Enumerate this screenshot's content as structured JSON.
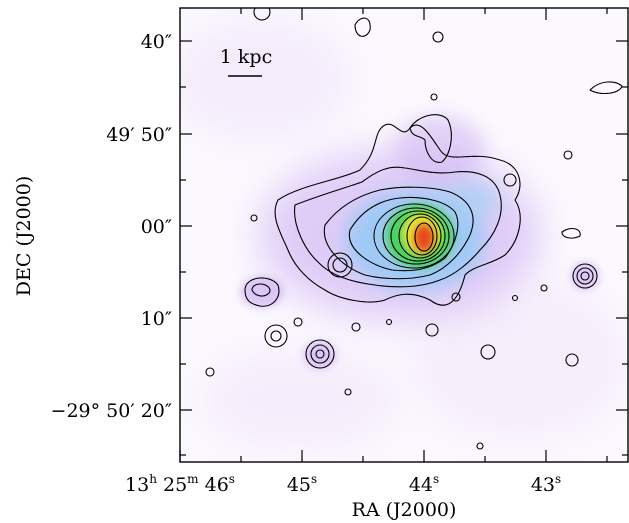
{
  "figure": {
    "scalebar_label": "1 kpc",
    "ylabel": "DEC (J2000)",
    "xlabel": "RA (J2000)",
    "dec_ticks": [
      {
        "label": "40″"
      },
      {
        "label": "49′ 50″"
      },
      {
        "label": "00″"
      },
      {
        "label": "10″"
      },
      {
        "label": "−29° 50′ 20″"
      }
    ],
    "ra_ticks": [
      {
        "h": "13",
        "m": "25",
        "s": "46"
      },
      {
        "s": "45"
      },
      {
        "s": "44"
      },
      {
        "s": "43"
      }
    ],
    "ra_units": {
      "h": "h",
      "m": "m",
      "s": "s"
    },
    "colors": {
      "frame": "#000000",
      "halo": "#c9a8f2",
      "mid": "#8fc9f5",
      "core_green": "#3fd35a",
      "core_yellow": "#f2e830",
      "peak": "#e8401c"
    }
  }
}
